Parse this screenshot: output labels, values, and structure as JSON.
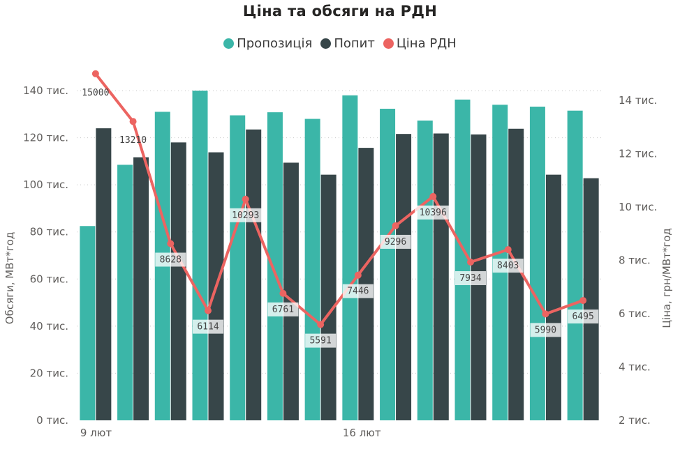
{
  "chart_data": {
    "type": "bar+line",
    "title": "Ціна та обсяги на РДН",
    "legend": [
      {
        "name": "Пропозиція",
        "color": "#3bb6a8"
      },
      {
        "name": "Попит",
        "color": "#374649"
      },
      {
        "name": "Ціна РДН",
        "color": "#ec6461"
      }
    ],
    "x_tick_labels": [
      {
        "index": 0,
        "label": "9 лют"
      },
      {
        "index": 7,
        "label": "16 лют"
      }
    ],
    "series": [
      {
        "name": "Пропозиція",
        "axis": "left",
        "kind": "bar",
        "values": [
          82500,
          108500,
          131000,
          140000,
          129500,
          130800,
          128000,
          138000,
          132300,
          127300,
          136200,
          134000,
          133200,
          131500
        ]
      },
      {
        "name": "Попит",
        "axis": "left",
        "kind": "bar",
        "values": [
          124000,
          111700,
          118000,
          113800,
          123500,
          109400,
          104300,
          115700,
          121600,
          121800,
          121400,
          123800,
          104300,
          102800
        ]
      },
      {
        "name": "Ціна РДН",
        "axis": "right",
        "kind": "line",
        "values": [
          15000,
          13210,
          8628,
          6114,
          10293,
          6761,
          5591,
          7446,
          9296,
          10396,
          7934,
          8403,
          5990,
          6495
        ]
      }
    ],
    "data_labels": [
      "15000",
      "13210",
      "8628",
      "6114",
      "10293",
      "6761",
      "5591",
      "7446",
      "9296",
      "10396",
      "7934",
      "8403",
      "5990",
      "6495"
    ],
    "y_left": {
      "label": "Обсяги, МВт*год",
      "min": 0,
      "max": 150000,
      "ticks": [
        {
          "value": 0,
          "label": "0 тис."
        },
        {
          "value": 20000,
          "label": "20 тис."
        },
        {
          "value": 40000,
          "label": "40 тис."
        },
        {
          "value": 60000,
          "label": "60 тис."
        },
        {
          "value": 80000,
          "label": "80 тис."
        },
        {
          "value": 100000,
          "label": "100 тис."
        },
        {
          "value": 120000,
          "label": "120 тис."
        },
        {
          "value": 140000,
          "label": "140 тис."
        }
      ]
    },
    "y_right": {
      "label": "Ціна, грн/МВт*год",
      "min": 2000,
      "max": 16000,
      "ticks": [
        {
          "value": 2000,
          "label": "2 тис."
        },
        {
          "value": 4000,
          "label": "4 тис."
        },
        {
          "value": 6000,
          "label": "6 тис."
        },
        {
          "value": 8000,
          "label": "8 тис."
        },
        {
          "value": 10000,
          "label": "10 тис."
        },
        {
          "value": 12000,
          "label": "12 тис."
        },
        {
          "value": 14000,
          "label": "14 тис."
        }
      ]
    },
    "grid": true,
    "legend_position": "top-center"
  }
}
